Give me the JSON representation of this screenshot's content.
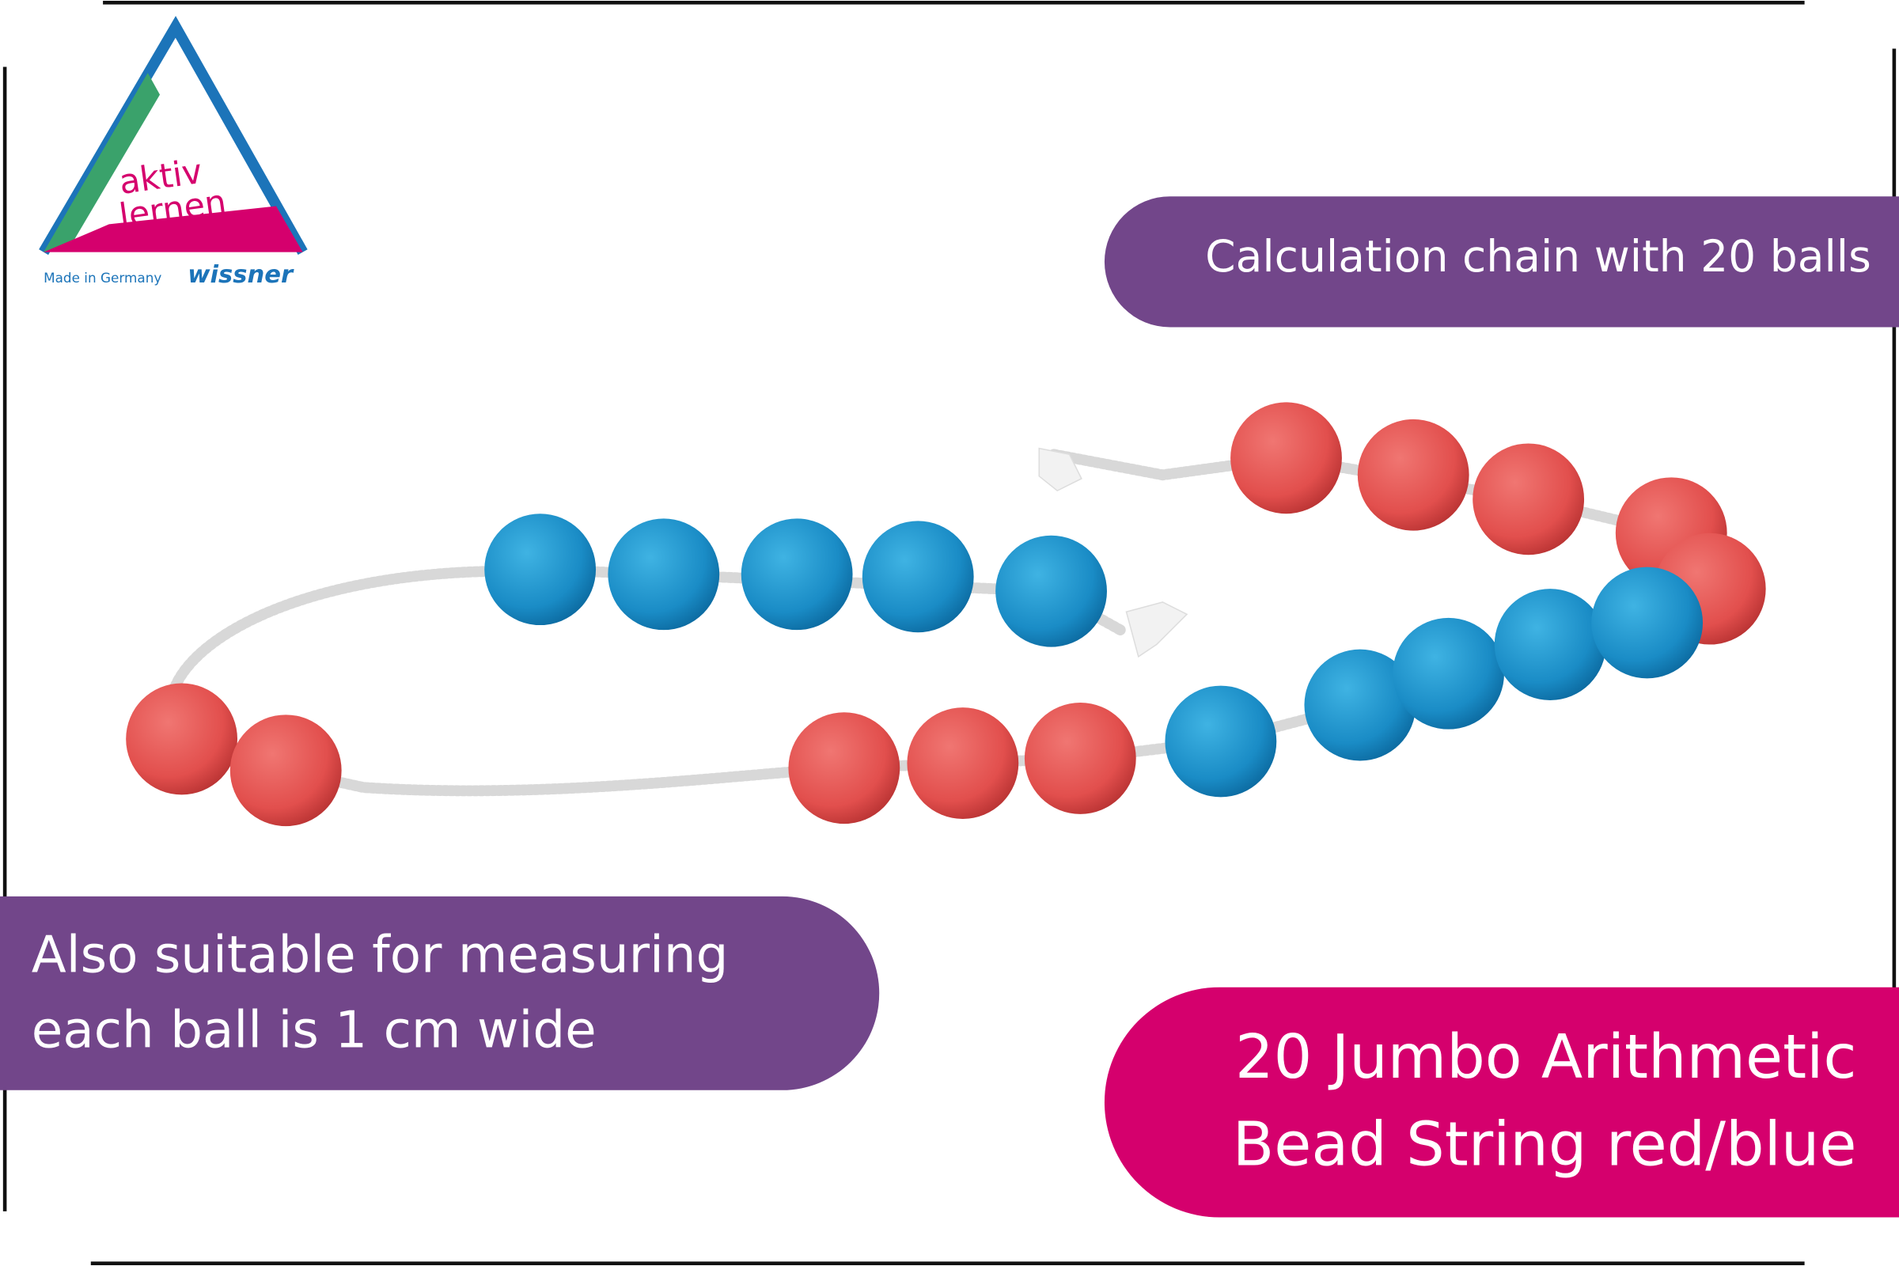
{
  "logo": {
    "line1": "aktiv",
    "line2": "lernen",
    "made_in": "Made in Germany",
    "brand": "wissner"
  },
  "banners": {
    "top": "Calculation chain with 20 balls",
    "left": [
      "Also suitable for measuring",
      "each ball is 1 cm wide"
    ],
    "right": [
      "20 Jumbo Arithmetic",
      "Bead String red/blue"
    ]
  }
}
